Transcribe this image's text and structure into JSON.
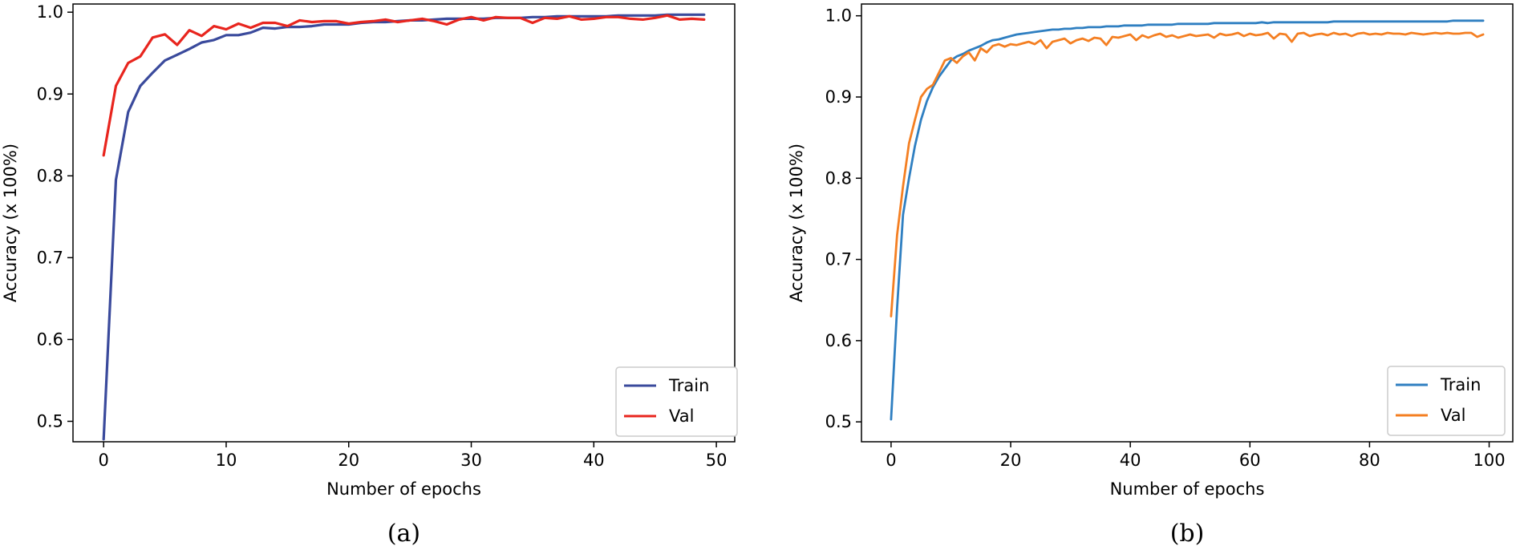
{
  "colors": {
    "a_train": "#3a4a9c",
    "a_val": "#e8251e",
    "b_train": "#2f7fc1",
    "b_val": "#f47f22"
  },
  "chart_data": [
    {
      "type": "line",
      "panel_label": "(a)",
      "xlabel": "Number of epochs",
      "ylabel": "Accuracy (x 100%)",
      "xlim": [
        -2.5,
        51.5
      ],
      "ylim": [
        0.475,
        1.01
      ],
      "xticks": [
        0,
        10,
        20,
        30,
        40,
        50
      ],
      "yticks": [
        0.5,
        0.6,
        0.7,
        0.8,
        0.9,
        1.0
      ],
      "xtick_labels": [
        "0",
        "10",
        "20",
        "30",
        "40",
        "50"
      ],
      "ytick_labels": [
        "0.5",
        "0.6",
        "0.7",
        "0.8",
        "0.9",
        "1.0"
      ],
      "legend_position": "lower right",
      "series": [
        {
          "name": "Train",
          "color_key": "a_train",
          "x": [
            0,
            1,
            2,
            3,
            4,
            5,
            6,
            7,
            8,
            9,
            10,
            11,
            12,
            13,
            14,
            15,
            16,
            17,
            18,
            19,
            20,
            21,
            22,
            23,
            24,
            25,
            26,
            27,
            28,
            29,
            30,
            31,
            32,
            33,
            34,
            35,
            36,
            37,
            38,
            39,
            40,
            41,
            42,
            43,
            44,
            45,
            46,
            47,
            48,
            49
          ],
          "values": [
            0.478,
            0.795,
            0.878,
            0.91,
            0.926,
            0.941,
            0.948,
            0.955,
            0.963,
            0.966,
            0.972,
            0.972,
            0.975,
            0.981,
            0.98,
            0.982,
            0.982,
            0.983,
            0.985,
            0.985,
            0.985,
            0.987,
            0.988,
            0.988,
            0.989,
            0.99,
            0.99,
            0.991,
            0.992,
            0.992,
            0.992,
            0.992,
            0.993,
            0.993,
            0.993,
            0.994,
            0.994,
            0.995,
            0.995,
            0.995,
            0.995,
            0.995,
            0.996,
            0.996,
            0.996,
            0.996,
            0.997,
            0.997,
            0.997,
            0.997
          ]
        },
        {
          "name": "Val",
          "color_key": "a_val",
          "x": [
            0,
            1,
            2,
            3,
            4,
            5,
            6,
            7,
            8,
            9,
            10,
            11,
            12,
            13,
            14,
            15,
            16,
            17,
            18,
            19,
            20,
            21,
            22,
            23,
            24,
            25,
            26,
            27,
            28,
            29,
            30,
            31,
            32,
            33,
            34,
            35,
            36,
            37,
            38,
            39,
            40,
            41,
            42,
            43,
            44,
            45,
            46,
            47,
            48,
            49
          ],
          "values": [
            0.825,
            0.91,
            0.938,
            0.946,
            0.969,
            0.973,
            0.96,
            0.978,
            0.971,
            0.983,
            0.979,
            0.986,
            0.981,
            0.987,
            0.987,
            0.983,
            0.99,
            0.988,
            0.989,
            0.989,
            0.986,
            0.988,
            0.989,
            0.991,
            0.988,
            0.99,
            0.992,
            0.989,
            0.985,
            0.991,
            0.994,
            0.99,
            0.994,
            0.993,
            0.993,
            0.987,
            0.993,
            0.992,
            0.995,
            0.991,
            0.992,
            0.994,
            0.994,
            0.992,
            0.991,
            0.993,
            0.996,
            0.991,
            0.992,
            0.991
          ]
        }
      ]
    },
    {
      "type": "line",
      "panel_label": "(b)",
      "xlabel": "Number of epochs",
      "ylabel": "Accuracy (x 100%)",
      "xlim": [
        -4.95,
        103.95
      ],
      "ylim": [
        0.4755,
        1.0145
      ],
      "xticks": [
        0,
        20,
        40,
        60,
        80,
        100
      ],
      "yticks": [
        0.5,
        0.6,
        0.7,
        0.8,
        0.9,
        1.0
      ],
      "xtick_labels": [
        "0",
        "20",
        "40",
        "60",
        "80",
        "100"
      ],
      "ytick_labels": [
        "0.5",
        "0.6",
        "0.7",
        "0.8",
        "0.9",
        "1.0"
      ],
      "legend_position": "lower right",
      "series": [
        {
          "name": "Train",
          "color_key": "b_train",
          "x": [
            0,
            1,
            2,
            3,
            4,
            5,
            6,
            7,
            8,
            9,
            10,
            11,
            12,
            13,
            14,
            15,
            16,
            17,
            18,
            19,
            20,
            21,
            22,
            23,
            24,
            25,
            26,
            27,
            28,
            29,
            30,
            31,
            32,
            33,
            34,
            35,
            36,
            37,
            38,
            39,
            40,
            41,
            42,
            43,
            44,
            45,
            46,
            47,
            48,
            49,
            50,
            51,
            52,
            53,
            54,
            55,
            56,
            57,
            58,
            59,
            60,
            61,
            62,
            63,
            64,
            65,
            66,
            67,
            68,
            69,
            70,
            71,
            72,
            73,
            74,
            75,
            76,
            77,
            78,
            79,
            80,
            81,
            82,
            83,
            84,
            85,
            86,
            87,
            88,
            89,
            90,
            91,
            92,
            93,
            94,
            95,
            96,
            97,
            98,
            99
          ],
          "values": [
            0.503,
            0.64,
            0.755,
            0.8,
            0.84,
            0.872,
            0.895,
            0.912,
            0.925,
            0.935,
            0.945,
            0.95,
            0.953,
            0.957,
            0.96,
            0.963,
            0.967,
            0.97,
            0.971,
            0.973,
            0.975,
            0.977,
            0.978,
            0.979,
            0.98,
            0.981,
            0.982,
            0.983,
            0.983,
            0.984,
            0.984,
            0.985,
            0.985,
            0.986,
            0.986,
            0.986,
            0.987,
            0.987,
            0.987,
            0.988,
            0.988,
            0.988,
            0.988,
            0.989,
            0.989,
            0.989,
            0.989,
            0.989,
            0.99,
            0.99,
            0.99,
            0.99,
            0.99,
            0.99,
            0.991,
            0.991,
            0.991,
            0.991,
            0.991,
            0.991,
            0.991,
            0.991,
            0.992,
            0.991,
            0.992,
            0.992,
            0.992,
            0.992,
            0.992,
            0.992,
            0.992,
            0.992,
            0.992,
            0.992,
            0.993,
            0.993,
            0.993,
            0.993,
            0.993,
            0.993,
            0.993,
            0.993,
            0.993,
            0.993,
            0.993,
            0.993,
            0.993,
            0.993,
            0.993,
            0.993,
            0.993,
            0.993,
            0.993,
            0.993,
            0.994,
            0.994,
            0.994,
            0.994,
            0.994,
            0.994
          ]
        },
        {
          "name": "Val",
          "color_key": "b_val",
          "x": [
            0,
            1,
            2,
            3,
            4,
            5,
            6,
            7,
            8,
            9,
            10,
            11,
            12,
            13,
            14,
            15,
            16,
            17,
            18,
            19,
            20,
            21,
            22,
            23,
            24,
            25,
            26,
            27,
            28,
            29,
            30,
            31,
            32,
            33,
            34,
            35,
            36,
            37,
            38,
            39,
            40,
            41,
            42,
            43,
            44,
            45,
            46,
            47,
            48,
            49,
            50,
            51,
            52,
            53,
            54,
            55,
            56,
            57,
            58,
            59,
            60,
            61,
            62,
            63,
            64,
            65,
            66,
            67,
            68,
            69,
            70,
            71,
            72,
            73,
            74,
            75,
            76,
            77,
            78,
            79,
            80,
            81,
            82,
            83,
            84,
            85,
            86,
            87,
            88,
            89,
            90,
            91,
            92,
            93,
            94,
            95,
            96,
            97,
            98,
            99
          ],
          "values": [
            0.63,
            0.73,
            0.79,
            0.843,
            0.872,
            0.9,
            0.91,
            0.915,
            0.93,
            0.945,
            0.948,
            0.942,
            0.95,
            0.955,
            0.945,
            0.96,
            0.955,
            0.963,
            0.965,
            0.962,
            0.965,
            0.964,
            0.966,
            0.968,
            0.965,
            0.97,
            0.96,
            0.968,
            0.97,
            0.972,
            0.966,
            0.97,
            0.972,
            0.969,
            0.973,
            0.972,
            0.964,
            0.974,
            0.973,
            0.975,
            0.977,
            0.97,
            0.976,
            0.973,
            0.976,
            0.978,
            0.974,
            0.976,
            0.973,
            0.975,
            0.977,
            0.975,
            0.976,
            0.977,
            0.973,
            0.978,
            0.976,
            0.977,
            0.979,
            0.975,
            0.978,
            0.976,
            0.977,
            0.979,
            0.972,
            0.978,
            0.977,
            0.968,
            0.978,
            0.979,
            0.975,
            0.977,
            0.978,
            0.976,
            0.979,
            0.977,
            0.978,
            0.975,
            0.978,
            0.979,
            0.977,
            0.978,
            0.977,
            0.979,
            0.978,
            0.978,
            0.977,
            0.979,
            0.978,
            0.977,
            0.978,
            0.979,
            0.978,
            0.979,
            0.978,
            0.978,
            0.979,
            0.979,
            0.974,
            0.977
          ]
        }
      ]
    }
  ]
}
